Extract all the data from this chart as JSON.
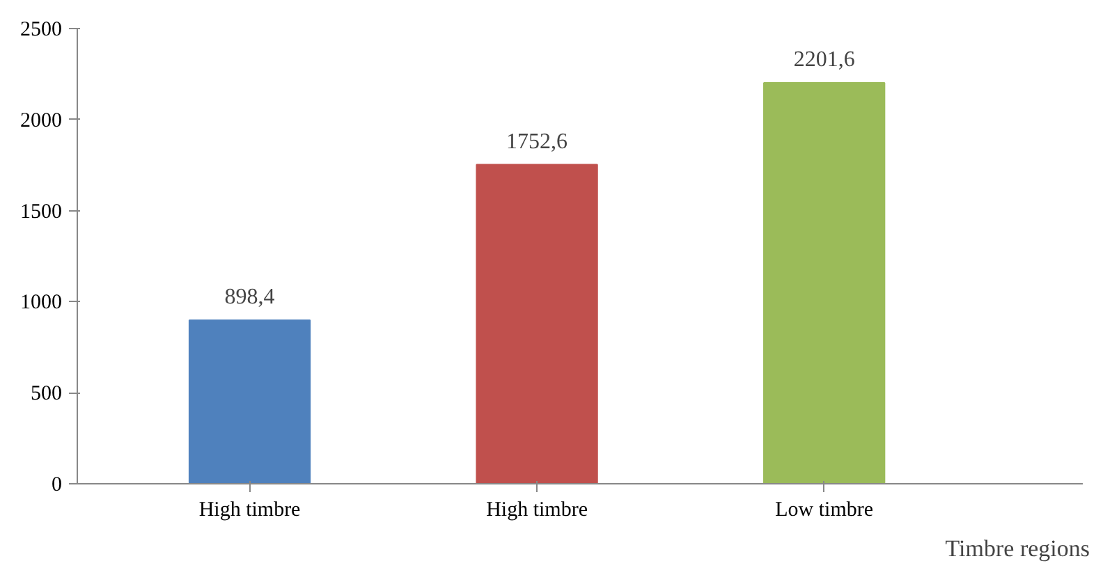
{
  "chart_data": {
    "type": "bar",
    "xlabel": "Timbre regions",
    "categories": [
      "High timbre",
      "High timbre",
      "Low timbre"
    ],
    "values": [
      898.4,
      1752.6,
      2201.6
    ],
    "value_labels": [
      "898,4",
      "1752,6",
      "2201,6"
    ],
    "colors": [
      "#4f81bd",
      "#c0504d",
      "#9bbb59"
    ],
    "ylim": [
      0,
      2500
    ],
    "yticks": [
      0,
      500,
      1000,
      1500,
      2000,
      2500
    ],
    "grid": false
  }
}
